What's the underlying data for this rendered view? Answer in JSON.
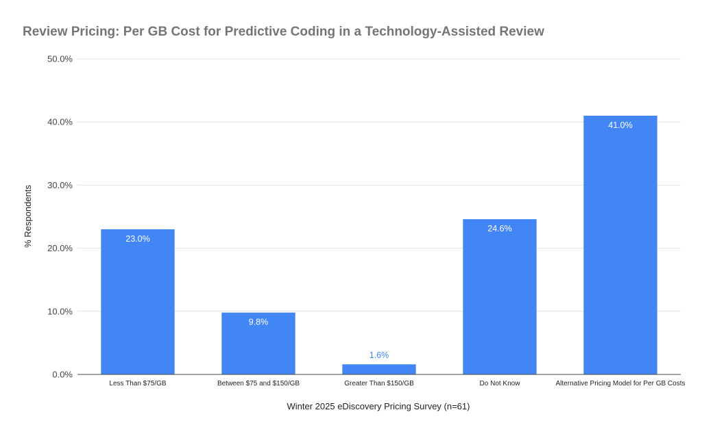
{
  "chart_data": {
    "type": "bar",
    "title": "Review Pricing: Per GB Cost for Predictive Coding in a Technology-Assisted Review",
    "xlabel": "Winter 2025 eDiscovery Pricing Survey (n=61)",
    "ylabel": "% Respondents",
    "categories": [
      "Less Than $75/GB",
      "Between $75 and $150/GB",
      "Greater Than $150/GB",
      "Do Not Know",
      "Alternative Pricing Model for Per GB Costs"
    ],
    "values": [
      23.0,
      9.8,
      1.6,
      24.6,
      41.0
    ],
    "data_labels": [
      "23.0%",
      "9.8%",
      "1.6%",
      "24.6%",
      "41.0%"
    ],
    "yticks": [
      "0.0%",
      "10.0%",
      "20.0%",
      "30.0%",
      "40.0%",
      "50.0%"
    ],
    "ylim": [
      0,
      50
    ],
    "grid": true,
    "legend": "none",
    "colors": {
      "bar": "#4285f4",
      "label_inside": "#ffffff",
      "label_outside": "#4285f4",
      "grid": "#e0e0e0",
      "axis": "#444444",
      "title": "#757575"
    }
  }
}
